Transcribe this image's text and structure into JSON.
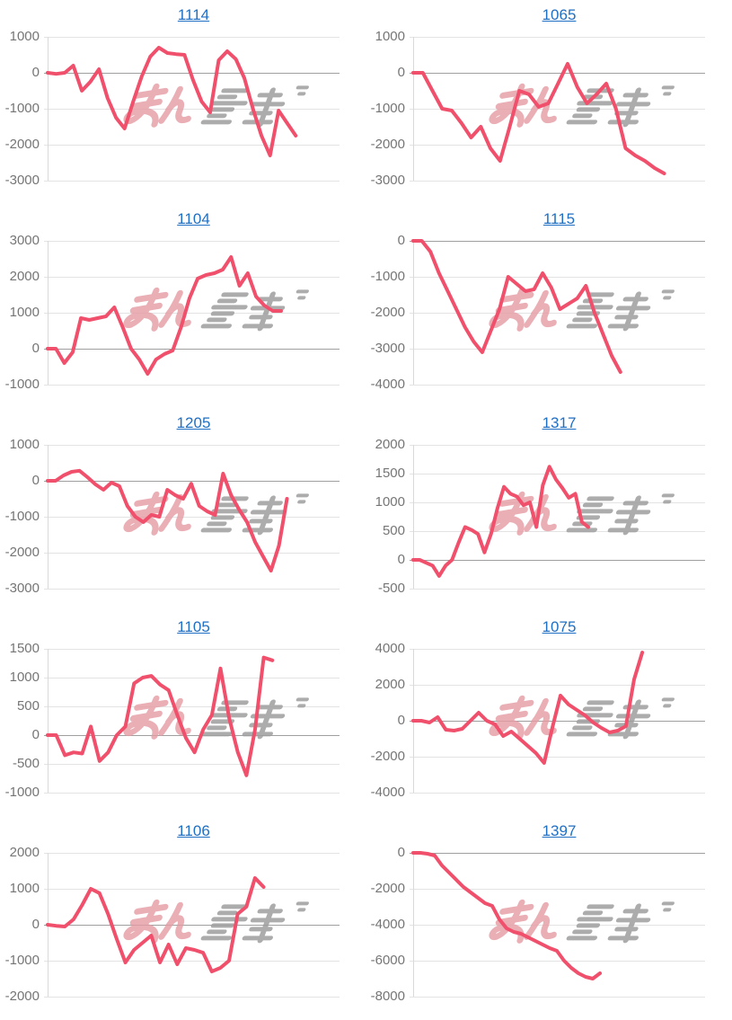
{
  "page": {
    "background": "#ffffff"
  },
  "colors": {
    "line": "#f0506b",
    "link_blue": "#1f6fc4",
    "axis_label": "#757575",
    "gridline": "#e3e3e3",
    "zero_line": "#9f9f9f",
    "axis_line": "#d9d9d9",
    "watermark_pink": "#e59aa3",
    "watermark_gray": "#9e9e9e"
  },
  "watermark": {
    "text": "みんかぶ",
    "part_pink": "みん",
    "part_gray": "かぶ"
  },
  "chart_data": [
    {
      "type": "line",
      "title": "1114",
      "ylabel": "",
      "yticks": [
        1000,
        0,
        -1000,
        -2000,
        -3000
      ],
      "ylim": [
        -3000,
        1000
      ],
      "grid": true,
      "x_extent": 0.85,
      "values": [
        0,
        -30,
        0,
        200,
        -500,
        -250,
        100,
        -700,
        -1250,
        -1550,
        -800,
        -100,
        450,
        700,
        550,
        520,
        500,
        -200,
        -800,
        -1100,
        350,
        600,
        380,
        -150,
        -1000,
        -1750,
        -2300,
        -1050,
        -1400,
        -1750
      ]
    },
    {
      "type": "line",
      "title": "1065",
      "ylabel": "",
      "yticks": [
        1000,
        0,
        -1000,
        -2000,
        -3000
      ],
      "ylim": [
        -3000,
        1000
      ],
      "grid": true,
      "x_extent": 0.86,
      "values": [
        0,
        0,
        -500,
        -1000,
        -1050,
        -1400,
        -1800,
        -1500,
        -2100,
        -2450,
        -1500,
        -500,
        -600,
        -950,
        -850,
        -300,
        250,
        -400,
        -850,
        -600,
        -300,
        -1000,
        -2100,
        -2300,
        -2450,
        -2650,
        -2800
      ]
    },
    {
      "type": "line",
      "title": "1104",
      "ylabel": "",
      "yticks": [
        3000,
        2000,
        1000,
        0,
        -1000
      ],
      "ylim": [
        -1000,
        3000
      ],
      "grid": true,
      "x_extent": 0.8,
      "values": [
        0,
        0,
        -400,
        -100,
        850,
        800,
        850,
        900,
        1150,
        600,
        0,
        -300,
        -700,
        -300,
        -150,
        -50,
        600,
        1400,
        1950,
        2050,
        2100,
        2200,
        2550,
        1750,
        2100,
        1450,
        1200,
        1050,
        1050
      ]
    },
    {
      "type": "line",
      "title": "1115",
      "ylabel": "",
      "yticks": [
        0,
        -1000,
        -2000,
        -3000,
        -4000
      ],
      "ylim": [
        -4000,
        0
      ],
      "grid": true,
      "x_extent": 0.71,
      "values": [
        0,
        0,
        -300,
        -900,
        -1400,
        -1900,
        -2400,
        -2800,
        -3100,
        -2500,
        -1900,
        -1000,
        -1200,
        -1400,
        -1350,
        -900,
        -1300,
        -1900,
        -1750,
        -1600,
        -1250,
        -2000,
        -2600,
        -3200,
        -3650
      ]
    },
    {
      "type": "line",
      "title": "1205",
      "ylabel": "",
      "yticks": [
        1000,
        0,
        -1000,
        -2000,
        -3000
      ],
      "ylim": [
        -3000,
        1000
      ],
      "grid": true,
      "x_extent": 0.82,
      "values": [
        0,
        0,
        150,
        250,
        280,
        100,
        -100,
        -250,
        -50,
        -150,
        -700,
        -1000,
        -1150,
        -950,
        -1000,
        -250,
        -400,
        -500,
        -80,
        -700,
        -850,
        -950,
        200,
        -400,
        -800,
        -1150,
        -1700,
        -2100,
        -2500,
        -1800,
        -500
      ]
    },
    {
      "type": "line",
      "title": "1317",
      "ylabel": "",
      "yticks": [
        2000,
        1500,
        1000,
        500,
        0,
        -500
      ],
      "ylim": [
        -500,
        2000
      ],
      "grid": true,
      "x_extent": 0.6,
      "values": [
        0,
        0,
        -50,
        -100,
        -280,
        -100,
        0,
        300,
        570,
        520,
        450,
        130,
        450,
        900,
        1270,
        1150,
        1100,
        950,
        1000,
        570,
        1300,
        1620,
        1400,
        1250,
        1080,
        1150,
        660,
        570
      ]
    },
    {
      "type": "line",
      "title": "1105",
      "ylabel": "",
      "yticks": [
        1500,
        1000,
        500,
        0,
        -500,
        -1000
      ],
      "ylim": [
        -1000,
        1500
      ],
      "grid": true,
      "x_extent": 0.77,
      "values": [
        0,
        0,
        -350,
        -300,
        -320,
        150,
        -450,
        -300,
        0,
        150,
        900,
        1000,
        1030,
        880,
        780,
        350,
        -50,
        -300,
        100,
        350,
        1160,
        300,
        -300,
        -700,
        100,
        1350,
        1300
      ]
    },
    {
      "type": "line",
      "title": "1075",
      "ylabel": "",
      "yticks": [
        4000,
        2000,
        0,
        -2000,
        -4000
      ],
      "ylim": [
        -4000,
        4000
      ],
      "grid": true,
      "x_extent": 0.785,
      "values": [
        0,
        0,
        -100,
        200,
        -500,
        -550,
        -450,
        0,
        450,
        0,
        -200,
        -850,
        -600,
        -1000,
        -1400,
        -1800,
        -2350,
        -400,
        1400,
        900,
        600,
        300,
        -100,
        -400,
        -650,
        -550,
        -300,
        2300,
        3800
      ]
    },
    {
      "type": "line",
      "title": "1106",
      "ylabel": "",
      "yticks": [
        2000,
        1000,
        0,
        -1000,
        -2000
      ],
      "ylim": [
        -2000,
        2000
      ],
      "grid": true,
      "x_extent": 0.74,
      "values": [
        0,
        -30,
        -50,
        150,
        550,
        1000,
        880,
        300,
        -400,
        -1050,
        -700,
        -500,
        -300,
        -1050,
        -550,
        -1100,
        -650,
        -700,
        -780,
        -1300,
        -1200,
        -1000,
        300,
        500,
        1300,
        1050
      ]
    },
    {
      "type": "line",
      "title": "1397",
      "ylabel": "",
      "yticks": [
        0,
        -2000,
        -4000,
        -6000,
        -8000
      ],
      "ylim": [
        -8000,
        0
      ],
      "grid": true,
      "x_extent": 0.64,
      "values": [
        0,
        0,
        -50,
        -150,
        -700,
        -1100,
        -1500,
        -1900,
        -2200,
        -2500,
        -2800,
        -2950,
        -3700,
        -4200,
        -4400,
        -4500,
        -4700,
        -4900,
        -5100,
        -5300,
        -5450,
        -6000,
        -6400,
        -6700,
        -6900,
        -7000,
        -6700
      ]
    }
  ]
}
